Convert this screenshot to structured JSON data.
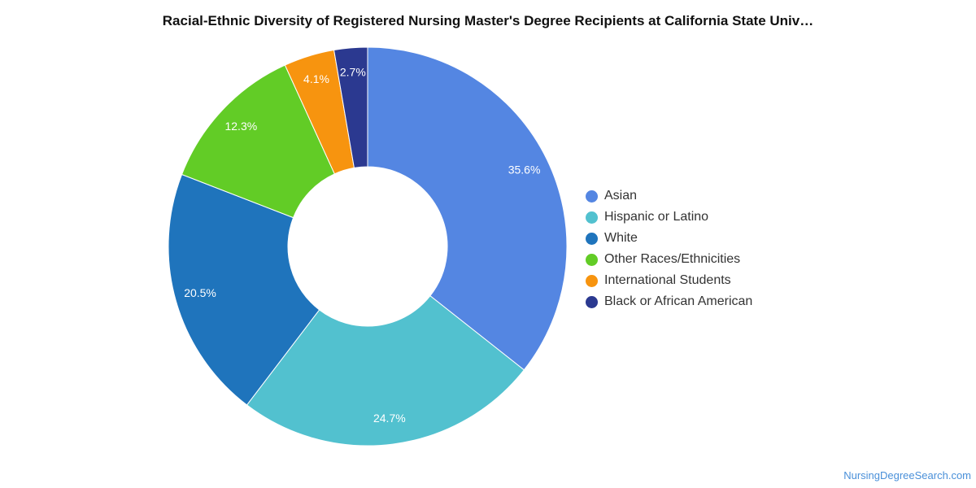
{
  "chart_data": {
    "type": "pie",
    "variant": "donut",
    "title": "Racial-Ethnic Diversity of Registered Nursing Master's Degree Recipients at California State Univ…",
    "series": [
      {
        "name": "Asian",
        "value": 35.6,
        "label": "35.6%",
        "color": "#5486e2"
      },
      {
        "name": "Hispanic or Latino",
        "value": 24.7,
        "label": "24.7%",
        "color": "#52c1cf"
      },
      {
        "name": "White",
        "value": 20.5,
        "label": "20.5%",
        "color": "#1f74bc"
      },
      {
        "name": "Other Races/Ethnicities",
        "value": 12.3,
        "label": "12.3%",
        "color": "#62cc26"
      },
      {
        "name": "International Students",
        "value": 4.1,
        "label": "4.1%",
        "color": "#f7940f"
      },
      {
        "name": "Black or African American",
        "value": 2.7,
        "label": "2.7%",
        "color": "#2b3990"
      }
    ],
    "legend_position": "right"
  },
  "source": {
    "label": "NursingDegreeSearch.com"
  }
}
